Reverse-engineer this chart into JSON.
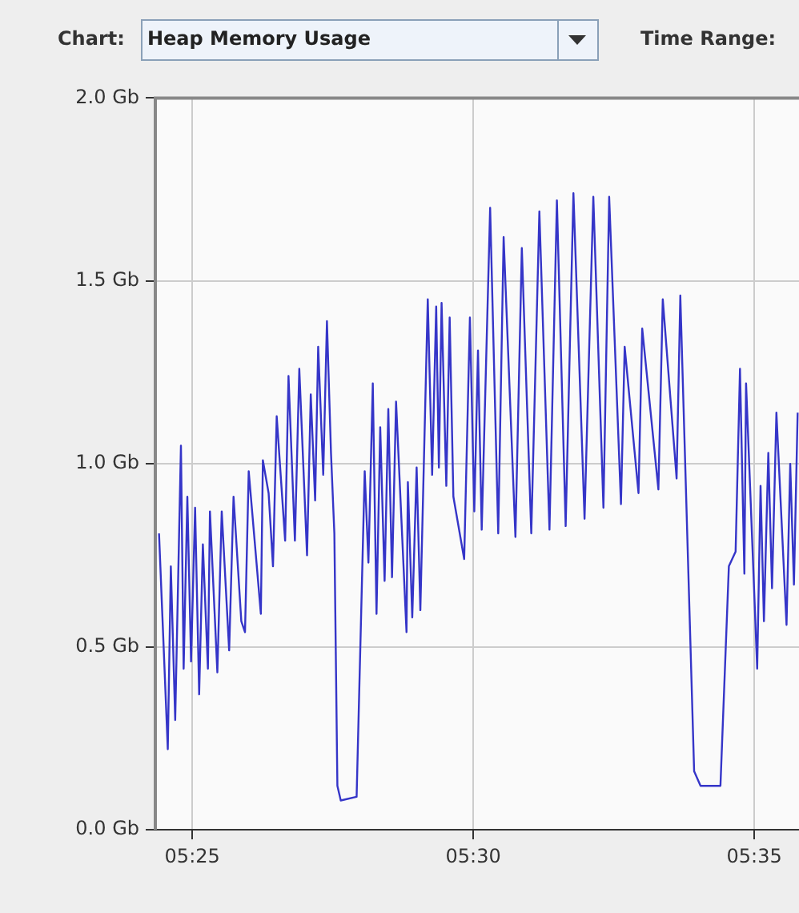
{
  "chart_data": {
    "type": "line",
    "title": "Heap Memory Usage",
    "annotations": [
      "Chart:",
      "Time Range:"
    ],
    "x": [
      5.4068,
      5.4094,
      5.4103,
      5.4116,
      5.4133,
      5.4141,
      5.4152,
      5.4163,
      5.4175,
      5.4187,
      5.4198,
      5.4213,
      5.4219,
      5.4241,
      5.4254,
      5.4276,
      5.4289,
      5.4312,
      5.4323,
      5.4334,
      5.437,
      5.4376,
      5.4393,
      5.4406,
      5.4417,
      5.4442,
      5.4452,
      5.4471,
      5.4484,
      5.4507,
      5.4518,
      5.4531,
      5.454,
      5.4555,
      5.4566,
      5.4578,
      5.4588,
      5.4597,
      5.4607,
      5.4654,
      5.4678,
      5.4689,
      5.4702,
      5.4713,
      5.4724,
      5.4737,
      5.4748,
      5.4759,
      5.4771,
      5.4802,
      5.4806,
      5.4819,
      5.4832,
      5.4843,
      5.4865,
      5.4878,
      5.489,
      5.4898,
      5.4906,
      5.492,
      5.493,
      5.4941,
      5.4973,
      5.499,
      5.5003,
      5.5014,
      5.5025,
      5.505,
      5.5074,
      5.509,
      5.5125,
      5.5144,
      5.5172,
      5.5196,
      5.5226,
      5.5248,
      5.5274,
      5.5297,
      5.533,
      5.5356,
      5.5386,
      5.5403,
      5.5438,
      5.5449,
      5.549,
      5.5501,
      5.5549,
      5.5562,
      5.5603,
      5.5614,
      5.5655,
      5.5674,
      5.5733,
      5.5758,
      5.5778,
      5.5791,
      5.5804,
      5.5809,
      5.5842,
      5.5852,
      5.5862,
      5.5875,
      5.5886,
      5.5899,
      5.5929,
      5.594,
      5.5951,
      5.5962
    ],
    "series": [
      {
        "color": "#3535c8",
        "values": [
          0.81,
          0.22,
          0.72,
          0.3,
          1.05,
          0.44,
          0.91,
          0.46,
          0.88,
          0.37,
          0.78,
          0.44,
          0.87,
          0.43,
          0.87,
          0.49,
          0.91,
          0.57,
          0.54,
          0.98,
          0.59,
          1.01,
          0.92,
          0.72,
          1.13,
          0.79,
          1.24,
          0.79,
          1.26,
          0.75,
          1.19,
          0.9,
          1.32,
          0.97,
          1.39,
          1.03,
          0.81,
          0.12,
          0.08,
          0.09,
          0.98,
          0.73,
          1.22,
          0.59,
          1.1,
          0.68,
          1.15,
          0.69,
          1.17,
          0.54,
          0.95,
          0.58,
          0.99,
          0.6,
          1.45,
          0.97,
          1.43,
          0.99,
          1.44,
          0.94,
          1.4,
          0.91,
          0.74,
          1.4,
          0.87,
          1.31,
          0.82,
          1.7,
          0.81,
          1.62,
          0.8,
          1.59,
          0.81,
          1.69,
          0.82,
          1.72,
          0.83,
          1.74,
          0.85,
          1.73,
          0.88,
          1.73,
          0.89,
          1.32,
          0.92,
          1.37,
          0.93,
          1.45,
          0.96,
          1.46,
          0.16,
          0.12,
          0.12,
          0.72,
          0.76,
          1.26,
          0.7,
          1.22,
          0.44,
          0.94,
          0.57,
          1.03,
          0.66,
          1.14,
          0.56,
          1.0,
          0.67,
          1.14
        ]
      }
    ],
    "xlim": [
      5.4057,
      5.5966
    ],
    "xticks": [
      {
        "value": 5.416667,
        "label": "05:25"
      },
      {
        "value": 5.5,
        "label": "05:30"
      },
      {
        "value": 5.583333,
        "label": "05:35"
      }
    ],
    "ylim": [
      0,
      2
    ],
    "yticks": [
      {
        "value": 0,
        "label": "0.0 Gb"
      },
      {
        "value": 0.5,
        "label": "0.5 Gb"
      },
      {
        "value": 1,
        "label": "1.0 Gb"
      },
      {
        "value": 1.5,
        "label": "1.5 Gb"
      },
      {
        "value": 2,
        "label": "2.0 Gb"
      }
    ],
    "grid": true,
    "marker": "none",
    "line_style": "solid"
  }
}
